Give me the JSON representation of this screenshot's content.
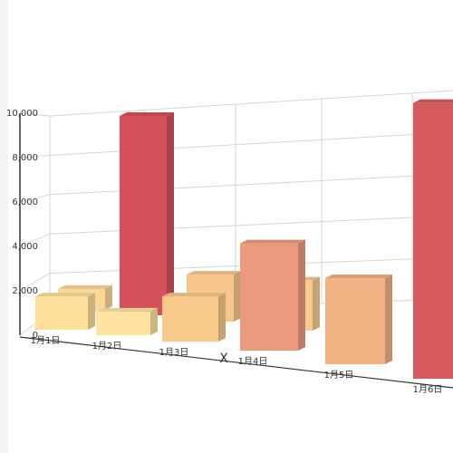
{
  "chart_data": {
    "type": "bar3d",
    "x_axis_label": "X",
    "categories": [
      "1月1日",
      "1月2日",
      "1月3日",
      "1月4日",
      "1月5日",
      "1月6日"
    ],
    "series": [
      {
        "values": [
          1000,
          9000,
          2000,
          2000,
          null,
          null
        ],
        "colors": [
          "#fcd898",
          "#d4505a",
          "#f6c68c",
          "#f6cc8e",
          null,
          null
        ]
      },
      {
        "values": [
          1500,
          1000,
          1800,
          4000,
          3000,
          9000
        ],
        "colors": [
          "#fddf9b",
          "#fee4a0",
          "#f7c98a",
          "#eb9a7e",
          "#f0b283",
          "#d65a5c"
        ]
      }
    ],
    "ylim": [
      0,
      10000
    ],
    "yticks": [
      0,
      {
        "value": 2000,
        "label": "2,000"
      },
      {
        "value": 4000,
        "label": "4,000"
      },
      {
        "value": 6000,
        "label": "6,000"
      },
      {
        "value": 8000,
        "label": "8,000"
      },
      {
        "value": 10000,
        "label": "10,000"
      }
    ],
    "grid": true
  }
}
